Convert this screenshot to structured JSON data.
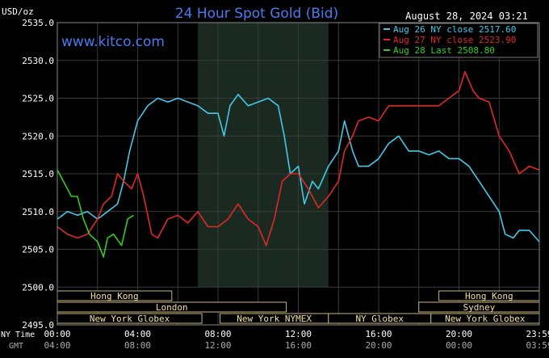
{
  "chart_data": {
    "type": "line",
    "title": "24 Hour Spot Gold (Bid)",
    "website": "www.kitco.com",
    "timestamp": "August 28, 2024 03:21",
    "ylabel": "USD/oz",
    "ylim": [
      2495.0,
      2535.0
    ],
    "xlim": [
      0,
      24
    ],
    "y_ticks": [
      "2535.0",
      "2530.0",
      "2525.0",
      "2520.0",
      "2515.0",
      "2510.0",
      "2505.0",
      "2500.0",
      "2495.0"
    ],
    "x_tick_hours": [
      0,
      4,
      8,
      12,
      16,
      20,
      24
    ],
    "x_axis_ny_label": "NY Time",
    "x_axis_gmt_label": "GMT",
    "x_ticks_ny": [
      "00:00",
      "04:00",
      "08:00",
      "12:00",
      "16:00",
      "20:00",
      "23:59"
    ],
    "x_ticks_gmt": [
      "04:00",
      "08:00",
      "12:00",
      "16:00",
      "20:00",
      "00:00",
      "03:59"
    ],
    "grid": true,
    "shaded_region_hours": [
      7,
      13.5
    ],
    "legend_placement": "top-right",
    "series": [
      {
        "name": "Aug 26 NY close 2517.60",
        "color": "#44c8e8",
        "points": [
          [
            0,
            2509
          ],
          [
            0.5,
            2510
          ],
          [
            1,
            2509.5
          ],
          [
            1.5,
            2510
          ],
          [
            2,
            2509
          ],
          [
            2.5,
            2510
          ],
          [
            3,
            2511
          ],
          [
            3.3,
            2514
          ],
          [
            3.6,
            2518
          ],
          [
            4,
            2522
          ],
          [
            4.5,
            2524
          ],
          [
            5,
            2525
          ],
          [
            5.5,
            2524.5
          ],
          [
            6,
            2525
          ],
          [
            6.5,
            2524.5
          ],
          [
            7,
            2524
          ],
          [
            7.5,
            2523
          ],
          [
            8,
            2523
          ],
          [
            8.3,
            2520
          ],
          [
            8.6,
            2524
          ],
          [
            9,
            2525.5
          ],
          [
            9.5,
            2524
          ],
          [
            10,
            2524.5
          ],
          [
            10.5,
            2525
          ],
          [
            11,
            2524
          ],
          [
            11.3,
            2520
          ],
          [
            11.6,
            2515
          ],
          [
            12,
            2516
          ],
          [
            12.3,
            2511
          ],
          [
            12.7,
            2514
          ],
          [
            13,
            2513
          ],
          [
            13.5,
            2516
          ],
          [
            14,
            2518
          ],
          [
            14.3,
            2522
          ],
          [
            14.7,
            2518
          ],
          [
            15,
            2516
          ],
          [
            15.5,
            2516
          ],
          [
            16,
            2517
          ],
          [
            16.5,
            2519
          ],
          [
            17,
            2520
          ],
          [
            17.5,
            2518
          ],
          [
            18,
            2518
          ],
          [
            18.5,
            2517.5
          ],
          [
            19,
            2518
          ],
          [
            19.5,
            2517
          ],
          [
            20,
            2517
          ],
          [
            20.5,
            2516
          ],
          [
            21,
            2514
          ],
          [
            21.5,
            2512
          ],
          [
            22,
            2510
          ],
          [
            22.3,
            2507
          ],
          [
            22.7,
            2506.5
          ],
          [
            23,
            2507.5
          ],
          [
            23.5,
            2507.5
          ],
          [
            24,
            2506
          ]
        ]
      },
      {
        "name": "Aug 27 NY close 2523.90",
        "color": "#e02828",
        "points": [
          [
            0,
            2508
          ],
          [
            0.5,
            2507
          ],
          [
            1,
            2506.5
          ],
          [
            1.5,
            2507
          ],
          [
            2,
            2509
          ],
          [
            2.3,
            2511
          ],
          [
            2.7,
            2512
          ],
          [
            3,
            2515
          ],
          [
            3.3,
            2514
          ],
          [
            3.7,
            2513
          ],
          [
            4,
            2515
          ],
          [
            4.3,
            2512
          ],
          [
            4.7,
            2507
          ],
          [
            5,
            2506.5
          ],
          [
            5.5,
            2509
          ],
          [
            6,
            2509.5
          ],
          [
            6.5,
            2508.5
          ],
          [
            7,
            2510
          ],
          [
            7.5,
            2508
          ],
          [
            8,
            2508
          ],
          [
            8.5,
            2509
          ],
          [
            9,
            2511
          ],
          [
            9.5,
            2509
          ],
          [
            10,
            2508
          ],
          [
            10.4,
            2505.5
          ],
          [
            10.8,
            2509
          ],
          [
            11.2,
            2514
          ],
          [
            11.6,
            2515
          ],
          [
            12,
            2515
          ],
          [
            12.5,
            2513
          ],
          [
            13,
            2510.5
          ],
          [
            13.5,
            2512
          ],
          [
            14,
            2514
          ],
          [
            14.3,
            2518
          ],
          [
            14.7,
            2520
          ],
          [
            15,
            2522
          ],
          [
            15.5,
            2522.5
          ],
          [
            16,
            2522
          ],
          [
            16.5,
            2524
          ],
          [
            17,
            2524
          ],
          [
            17.5,
            2524
          ],
          [
            18,
            2524
          ],
          [
            18.5,
            2524
          ],
          [
            19,
            2524
          ],
          [
            19.5,
            2525
          ],
          [
            20,
            2526
          ],
          [
            20.3,
            2528.5
          ],
          [
            20.7,
            2526
          ],
          [
            21,
            2525
          ],
          [
            21.5,
            2524.5
          ],
          [
            22,
            2520
          ],
          [
            22.5,
            2518
          ],
          [
            23,
            2515
          ],
          [
            23.5,
            2516
          ],
          [
            24,
            2515.5
          ]
        ]
      },
      {
        "name": "Aug 28 Last 2508.80",
        "color": "#33cc22",
        "points": [
          [
            0,
            2515.5
          ],
          [
            0.3,
            2514
          ],
          [
            0.7,
            2512
          ],
          [
            1,
            2512
          ],
          [
            1.3,
            2509
          ],
          [
            1.6,
            2507
          ],
          [
            2,
            2506
          ],
          [
            2.3,
            2504
          ],
          [
            2.5,
            2506.5
          ],
          [
            2.8,
            2507
          ],
          [
            3.2,
            2505.5
          ],
          [
            3.5,
            2509
          ],
          [
            3.8,
            2509.5
          ]
        ]
      }
    ]
  },
  "sessions": [
    {
      "label": "Hong Kong",
      "row": 0,
      "start": 0,
      "end": 5.7
    },
    {
      "label": "Hong Kong",
      "row": 0,
      "start": 19,
      "end": 24
    },
    {
      "label": "London",
      "row": 1,
      "start": 0,
      "end": 11.4
    },
    {
      "label": "Sydney",
      "row": 1,
      "start": 18,
      "end": 24
    },
    {
      "label": "New York Globex",
      "row": 2,
      "start": 0,
      "end": 7.2
    },
    {
      "label": "New York NYMEX",
      "row": 2,
      "start": 8.1,
      "end": 13.5
    },
    {
      "label": "NY Globex",
      "row": 2,
      "start": 13.5,
      "end": 18.6
    },
    {
      "label": "New York Globex",
      "row": 2,
      "start": 18.6,
      "end": 24
    }
  ]
}
